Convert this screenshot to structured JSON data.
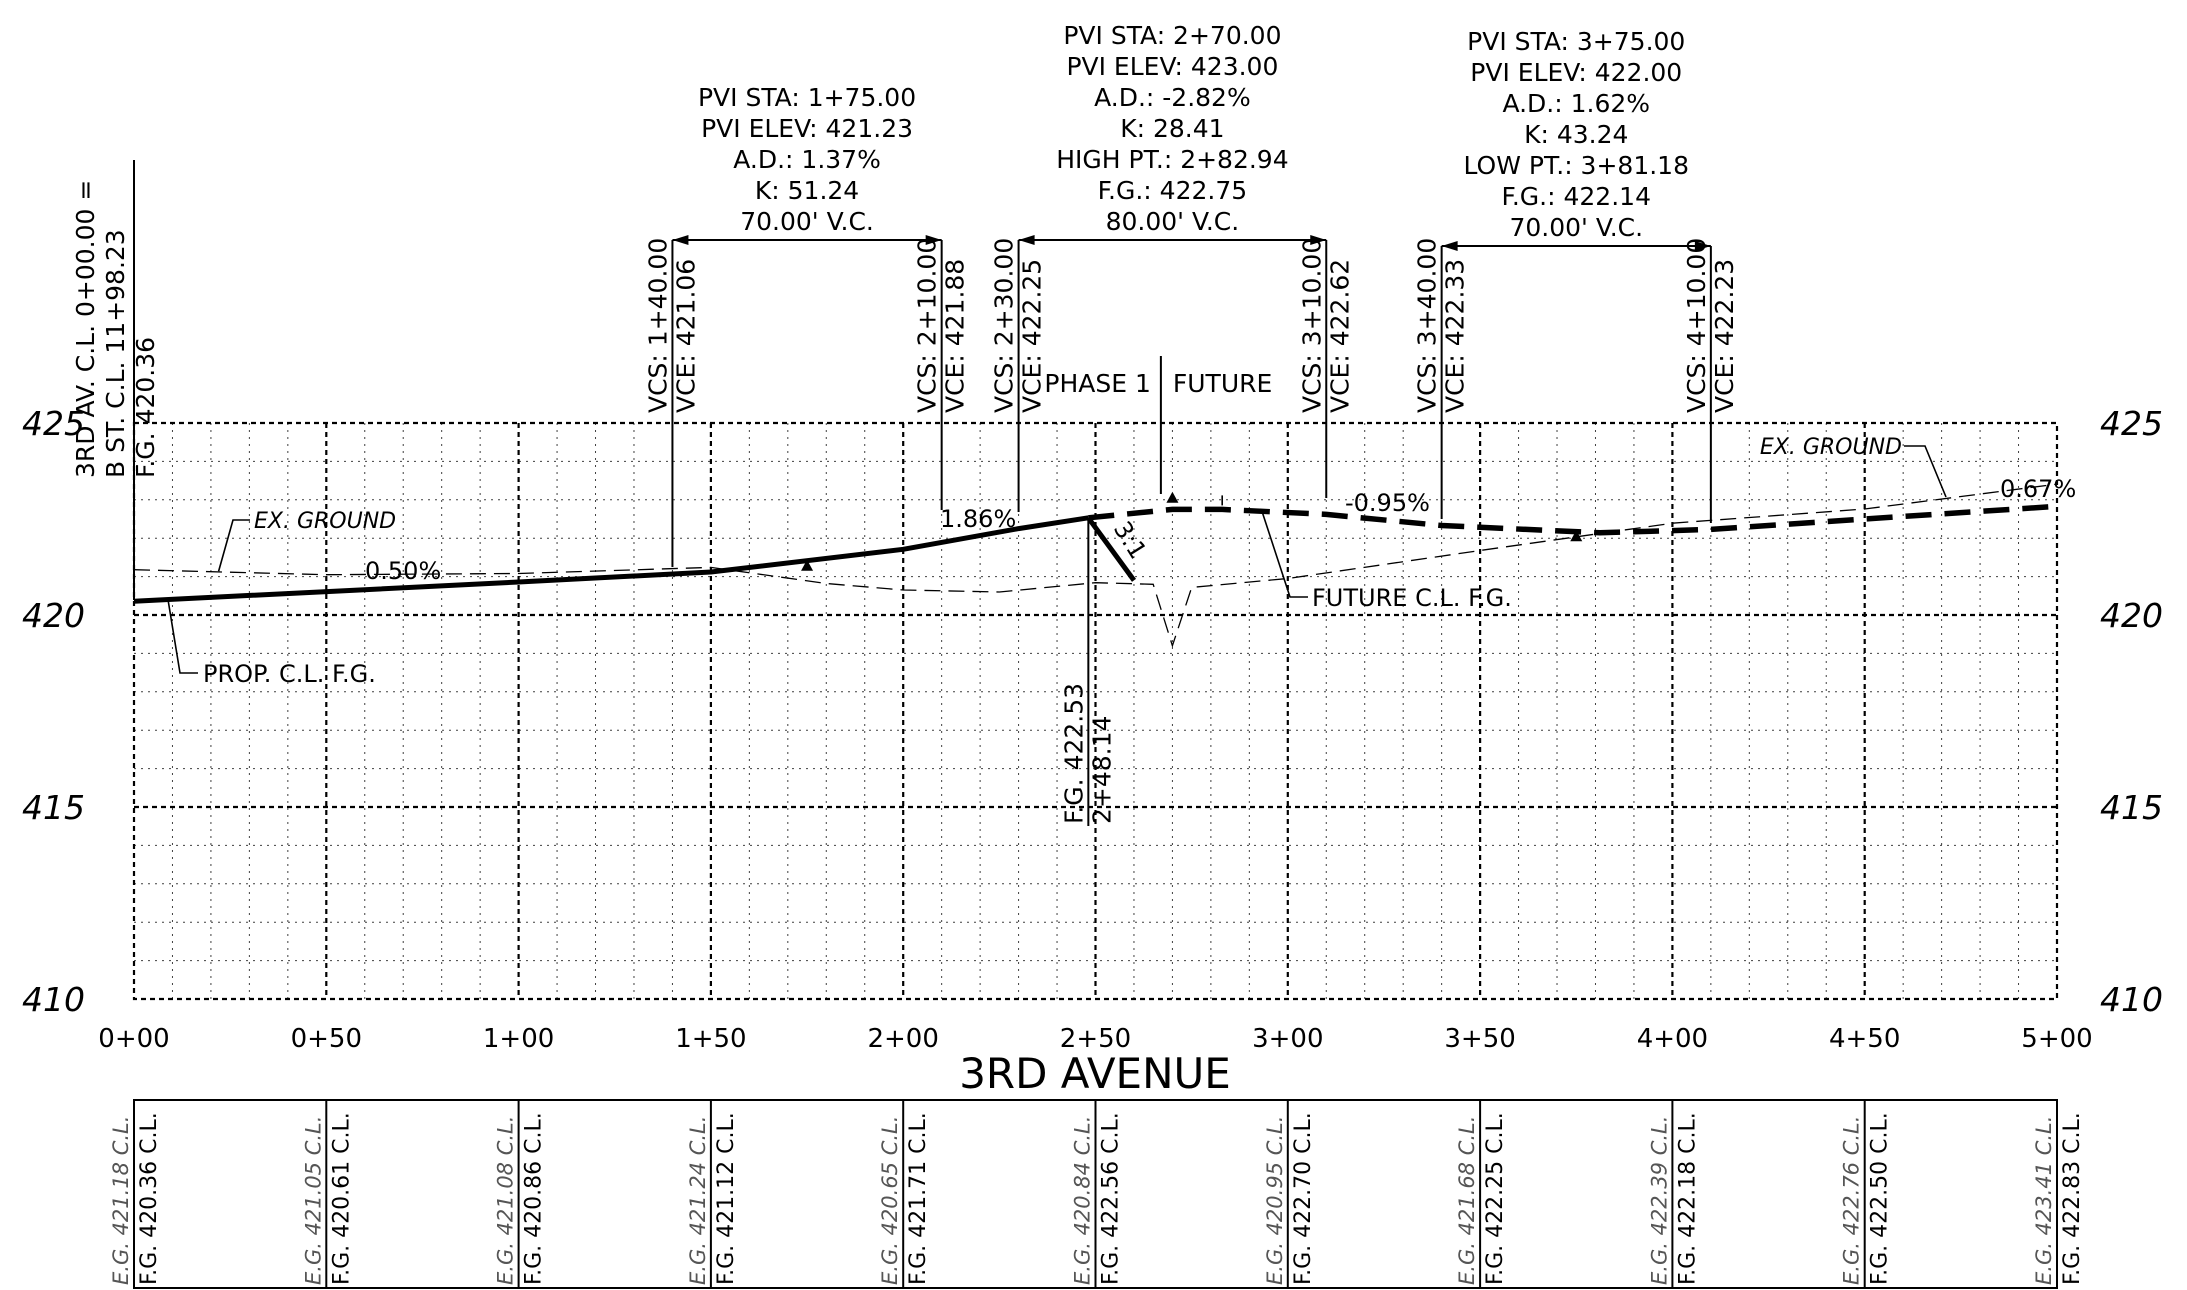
{
  "title": "3RD AVENUE",
  "chart_data": {
    "type": "line",
    "x_range": [
      0,
      500
    ],
    "y_range": [
      410,
      425
    ],
    "y_ticks": [
      "410",
      "415",
      "420",
      "425"
    ],
    "x_ticks": [
      "0+00",
      "0+50",
      "1+00",
      "1+50",
      "2+00",
      "2+50",
      "3+00",
      "3+50",
      "4+00",
      "4+50",
      "5+00"
    ],
    "proposed_profile": [
      [
        0,
        420.36
      ],
      [
        100,
        420.86
      ],
      [
        150,
        421.12
      ],
      [
        200,
        421.71
      ],
      [
        230,
        422.25
      ],
      [
        248.14,
        422.53
      ]
    ],
    "side_slope": [
      [
        248.14,
        422.53
      ],
      [
        260,
        420.9
      ]
    ],
    "future_profile": [
      [
        248.14,
        422.53
      ],
      [
        270,
        422.75
      ],
      [
        282.94,
        422.75
      ],
      [
        310,
        422.62
      ],
      [
        340,
        422.33
      ],
      [
        381.18,
        422.14
      ],
      [
        410,
        422.23
      ],
      [
        450,
        422.5
      ],
      [
        500,
        422.83
      ]
    ],
    "existing_ground": [
      [
        0,
        421.18
      ],
      [
        50,
        421.05
      ],
      [
        100,
        421.08
      ],
      [
        150,
        421.24
      ],
      [
        180,
        420.82
      ],
      [
        200,
        420.65
      ],
      [
        225,
        420.6
      ],
      [
        250,
        420.84
      ],
      [
        265,
        420.8
      ],
      [
        270,
        419.2
      ],
      [
        275,
        420.72
      ],
      [
        300,
        420.95
      ],
      [
        350,
        421.68
      ],
      [
        400,
        422.39
      ],
      [
        450,
        422.76
      ],
      [
        500,
        423.41
      ]
    ]
  },
  "header_labels": [
    {
      "sta": 0,
      "lines": [
        "3RD AV. C.L. 0+00.00 =",
        "B ST. C.L. 11+98.23",
        "F.G. 420.36"
      ]
    }
  ],
  "curves": [
    {
      "start": 140,
      "end": 210,
      "lines": [
        "PVI STA: 1+75.00",
        "PVI ELEV: 421.23",
        "A.D.: 1.37%",
        "K: 51.24",
        "70.00' V.C."
      ],
      "vcs": "VCS: 1+40.00",
      "vce_s": "VCE: 421.06",
      "vcs2": "VCS: 2+10.00",
      "vce2": "VCE: 421.88"
    },
    {
      "start": 230,
      "end": 310,
      "lines": [
        "PVI STA: 2+70.00",
        "PVI ELEV: 423.00",
        "A.D.: -2.82%",
        "K: 28.41",
        "HIGH PT.: 2+82.94",
        "F.G.: 422.75",
        "80.00' V.C."
      ],
      "vcs": "VCS: 2+30.00",
      "vce_s": "VCE: 422.25",
      "vcs2": "VCS: 3+10.00",
      "vce2": "VCE: 422.62"
    },
    {
      "start": 340,
      "end": 410,
      "lines": [
        "PVI STA: 3+75.00",
        "PVI ELEV: 422.00",
        "A.D.: 1.62%",
        "K: 43.24",
        "LOW PT.: 3+81.18",
        "F.G.: 422.14",
        "70.00' V.C."
      ],
      "vcs": "VCS: 3+40.00",
      "vce_s": "VCE: 422.33",
      "vcs2": "VCS: 4+10.00",
      "vce2": "VCE: 422.23"
    }
  ],
  "labels": {
    "phase1": "PHASE 1",
    "future": "FUTURE",
    "grade1": "0.50%",
    "grade2": "1.86%",
    "grade3": "-0.95%",
    "grade4": "0.67%",
    "slope": "3:1",
    "exg_left": "EX. GROUND",
    "exg_right": "EX. GROUND",
    "prop_cl": "PROP. C.L. F.G.",
    "future_cl": "FUTURE C.L. F.G.",
    "break_fg": "F.G. 422.53",
    "break_sta": "2+48.14"
  },
  "table": [
    {
      "sta": 0,
      "eg": "E.G. 421.18 C.L.",
      "fg": "F.G. 420.36 C.L."
    },
    {
      "sta": 50,
      "eg": "E.G. 421.05 C.L.",
      "fg": "F.G. 420.61 C.L."
    },
    {
      "sta": 100,
      "eg": "E.G. 421.08 C.L.",
      "fg": "F.G. 420.86 C.L."
    },
    {
      "sta": 150,
      "eg": "E.G. 421.24 C.L.",
      "fg": "F.G. 421.12 C.L."
    },
    {
      "sta": 200,
      "eg": "E.G. 420.65 C.L.",
      "fg": "F.G. 421.71 C.L."
    },
    {
      "sta": 250,
      "eg": "E.G. 420.84 C.L.",
      "fg": "F.G. 422.56 C.L."
    },
    {
      "sta": 300,
      "eg": "E.G. 420.95 C.L.",
      "fg": "F.G. 422.70 C.L."
    },
    {
      "sta": 350,
      "eg": "E.G. 421.68 C.L.",
      "fg": "F.G. 422.25 C.L."
    },
    {
      "sta": 400,
      "eg": "E.G. 422.39 C.L.",
      "fg": "F.G. 422.18 C.L."
    },
    {
      "sta": 450,
      "eg": "E.G. 422.76 C.L.",
      "fg": "F.G. 422.50 C.L."
    },
    {
      "sta": 500,
      "eg": "E.G. 423.41 C.L.",
      "fg": "F.G. 422.83 C.L."
    }
  ]
}
